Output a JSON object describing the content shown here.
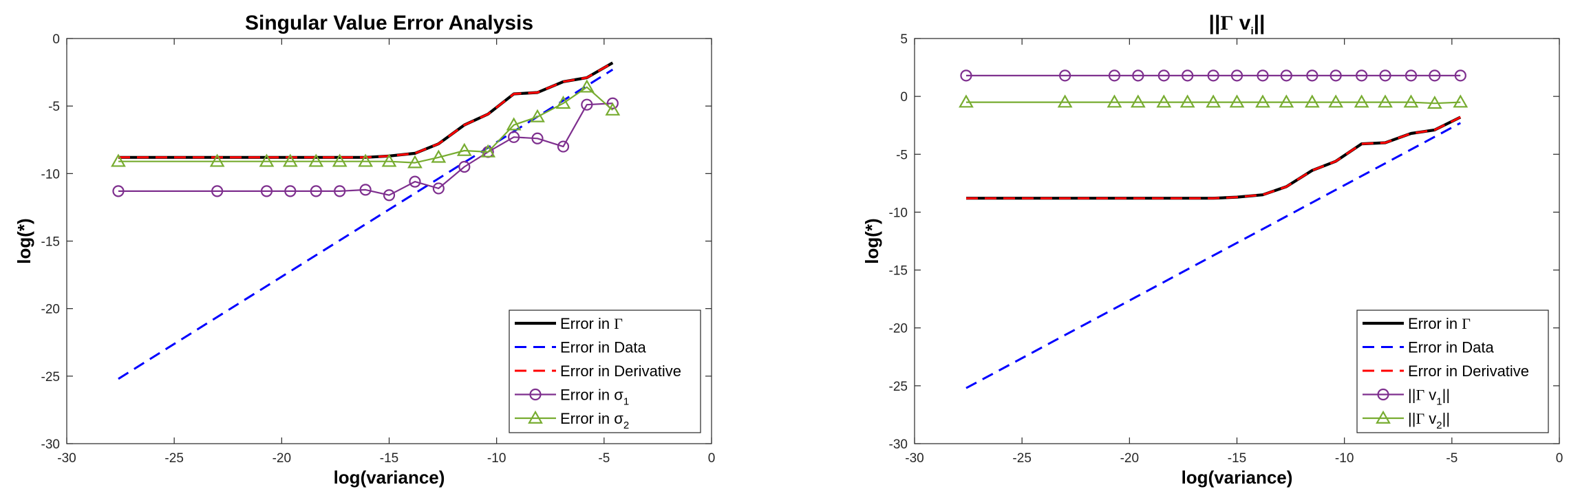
{
  "chart_data": [
    {
      "type": "line",
      "title": "Singular Value Error Analysis",
      "xlabel": "log(variance)",
      "ylabel": "log(*)",
      "xlim": [
        -30,
        0
      ],
      "ylim": [
        -30,
        0
      ],
      "xticks": [
        -30,
        -25,
        -20,
        -15,
        -10,
        -5,
        0
      ],
      "yticks": [
        -30,
        -25,
        -20,
        -15,
        -10,
        -5,
        0
      ],
      "legend_position": "bottom-right",
      "series": [
        {
          "name": "Error in Γ",
          "color": "#000000",
          "style": "solid",
          "marker": "none",
          "x": [
            -27.6,
            -23,
            -20.7,
            -19.6,
            -18.4,
            -17.3,
            -16.1,
            -15,
            -13.8,
            -12.7,
            -11.5,
            -10.4,
            -9.2,
            -8.1,
            -6.9,
            -5.8,
            -4.6
          ],
          "y": [
            -8.8,
            -8.8,
            -8.8,
            -8.8,
            -8.8,
            -8.8,
            -8.8,
            -8.7,
            -8.5,
            -7.8,
            -6.4,
            -5.6,
            -4.1,
            -4.0,
            -3.2,
            -2.9,
            -1.8
          ]
        },
        {
          "name": "Error in Data",
          "color": "#0000ff",
          "style": "dashed",
          "marker": "none",
          "x": [
            -27.6,
            -4.6
          ],
          "y": [
            -25.2,
            -2.3
          ]
        },
        {
          "name": "Error in Derivative",
          "color": "#ff0000",
          "style": "dashed",
          "marker": "none",
          "x": [
            -27.6,
            -23,
            -20.7,
            -19.6,
            -18.4,
            -17.3,
            -16.1,
            -15,
            -13.8,
            -12.7,
            -11.5,
            -10.4,
            -9.2,
            -8.1,
            -6.9,
            -5.8,
            -4.6
          ],
          "y": [
            -8.8,
            -8.8,
            -8.8,
            -8.8,
            -8.8,
            -8.8,
            -8.8,
            -8.7,
            -8.5,
            -7.8,
            -6.4,
            -5.6,
            -4.1,
            -4.0,
            -3.2,
            -2.9,
            -1.8
          ]
        },
        {
          "name": "Error in σ",
          "name_sub": "1",
          "color": "#7e2f8e",
          "style": "solid",
          "marker": "circle",
          "x": [
            -27.6,
            -23,
            -20.7,
            -19.6,
            -18.4,
            -17.3,
            -16.1,
            -15,
            -13.8,
            -12.7,
            -11.5,
            -10.4,
            -9.2,
            -8.1,
            -6.9,
            -5.8,
            -4.6
          ],
          "y": [
            -11.3,
            -11.3,
            -11.3,
            -11.3,
            -11.3,
            -11.3,
            -11.2,
            -11.6,
            -10.6,
            -11.1,
            -9.5,
            -8.4,
            -7.3,
            -7.4,
            -8.0,
            -4.9,
            -4.8
          ]
        },
        {
          "name": "Error in σ",
          "name_sub": "2",
          "color": "#77ac30",
          "style": "solid",
          "marker": "triangle",
          "x": [
            -27.6,
            -23,
            -20.7,
            -19.6,
            -18.4,
            -17.3,
            -16.1,
            -15,
            -13.8,
            -12.7,
            -11.5,
            -10.4,
            -9.2,
            -8.1,
            -6.9,
            -5.8,
            -4.6
          ],
          "y": [
            -9.1,
            -9.1,
            -9.1,
            -9.1,
            -9.1,
            -9.1,
            -9.1,
            -9.1,
            -9.2,
            -8.8,
            -8.3,
            -8.4,
            -6.4,
            -5.8,
            -4.8,
            -3.6,
            -5.3
          ]
        }
      ]
    },
    {
      "type": "line",
      "title": "||Γ v",
      "title_sub": "i",
      "title_tail": "||",
      "xlabel": "log(variance)",
      "ylabel": "log(*)",
      "xlim": [
        -30,
        0
      ],
      "ylim": [
        -30,
        5
      ],
      "xticks": [
        -30,
        -25,
        -20,
        -15,
        -10,
        -5,
        0
      ],
      "yticks": [
        -30,
        -25,
        -20,
        -15,
        -10,
        -5,
        0,
        5
      ],
      "legend_position": "bottom-right",
      "series": [
        {
          "name": "Error in Γ",
          "color": "#000000",
          "style": "solid",
          "marker": "none",
          "x": [
            -27.6,
            -23,
            -20.7,
            -19.6,
            -18.4,
            -17.3,
            -16.1,
            -15,
            -13.8,
            -12.7,
            -11.5,
            -10.4,
            -9.2,
            -8.1,
            -6.9,
            -5.8,
            -4.6
          ],
          "y": [
            -8.8,
            -8.8,
            -8.8,
            -8.8,
            -8.8,
            -8.8,
            -8.8,
            -8.7,
            -8.5,
            -7.8,
            -6.4,
            -5.6,
            -4.1,
            -4.0,
            -3.2,
            -2.9,
            -1.8
          ]
        },
        {
          "name": "Error in Data",
          "color": "#0000ff",
          "style": "dashed",
          "marker": "none",
          "x": [
            -27.6,
            -4.6
          ],
          "y": [
            -25.2,
            -2.3
          ]
        },
        {
          "name": "Error in Derivative",
          "color": "#ff0000",
          "style": "dashed",
          "marker": "none",
          "x": [
            -27.6,
            -23,
            -20.7,
            -19.6,
            -18.4,
            -17.3,
            -16.1,
            -15,
            -13.8,
            -12.7,
            -11.5,
            -10.4,
            -9.2,
            -8.1,
            -6.9,
            -5.8,
            -4.6
          ],
          "y": [
            -8.8,
            -8.8,
            -8.8,
            -8.8,
            -8.8,
            -8.8,
            -8.8,
            -8.7,
            -8.5,
            -7.8,
            -6.4,
            -5.6,
            -4.1,
            -4.0,
            -3.2,
            -2.9,
            -1.8
          ]
        },
        {
          "name": "||Γ v",
          "name_sub": "1",
          "name_tail": "||",
          "color": "#7e2f8e",
          "style": "solid",
          "marker": "circle",
          "x": [
            -27.6,
            -23,
            -20.7,
            -19.6,
            -18.4,
            -17.3,
            -16.1,
            -15,
            -13.8,
            -12.7,
            -11.5,
            -10.4,
            -9.2,
            -8.1,
            -6.9,
            -5.8,
            -4.6
          ],
          "y": [
            1.8,
            1.8,
            1.8,
            1.8,
            1.8,
            1.8,
            1.8,
            1.8,
            1.8,
            1.8,
            1.8,
            1.8,
            1.8,
            1.8,
            1.8,
            1.8,
            1.8
          ]
        },
        {
          "name": "||Γ v",
          "name_sub": "2",
          "name_tail": "||",
          "color": "#77ac30",
          "style": "solid",
          "marker": "triangle",
          "x": [
            -27.6,
            -23,
            -20.7,
            -19.6,
            -18.4,
            -17.3,
            -16.1,
            -15,
            -13.8,
            -12.7,
            -11.5,
            -10.4,
            -9.2,
            -8.1,
            -6.9,
            -5.8,
            -4.6
          ],
          "y": [
            -0.5,
            -0.5,
            -0.5,
            -0.5,
            -0.5,
            -0.5,
            -0.5,
            -0.5,
            -0.5,
            -0.5,
            -0.5,
            -0.5,
            -0.5,
            -0.5,
            -0.5,
            -0.6,
            -0.5
          ]
        }
      ]
    }
  ]
}
